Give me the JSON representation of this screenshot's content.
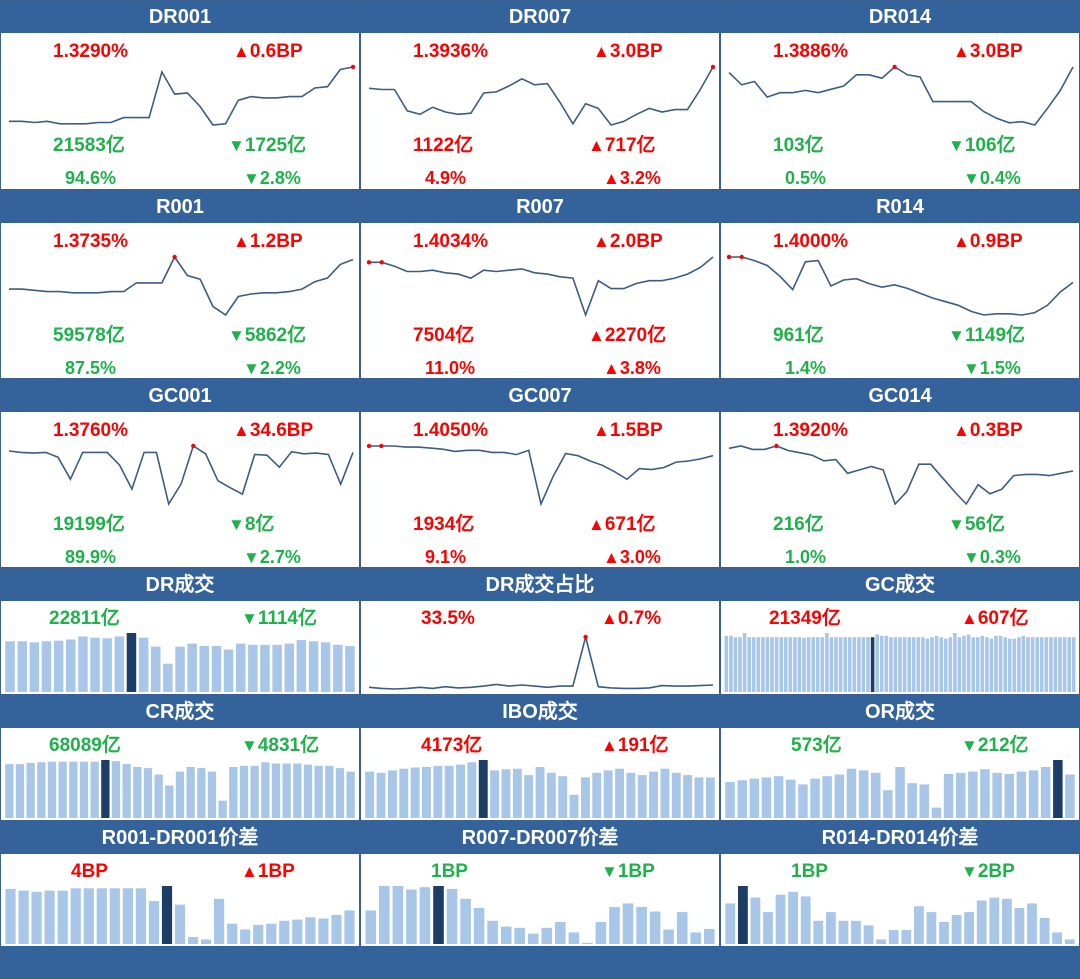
{
  "colors": {
    "header_bg": "#34629a",
    "up": "#ff0000",
    "down": "#1fb14a",
    "line": "#3a5c86",
    "bar": "#a8c6e8",
    "bar_highlight": "#1c3d66"
  },
  "rate_panels": [
    {
      "title": "DR001",
      "rate": "1.3290%",
      "rate_dir": "up",
      "bp": "0.6BP",
      "bp_dir": "up",
      "vol": "21583亿",
      "vol_dir": "down",
      "vol_chg": "1725亿",
      "vol_chg_dir": "down",
      "share": "94.6%",
      "share_dir": "down",
      "share_chg": "2.8%",
      "share_chg_dir": "down",
      "chart_data": {
        "type": "line",
        "values": [
          1.2,
          1.2,
          1.19,
          1.2,
          1.18,
          1.18,
          1.18,
          1.19,
          1.19,
          1.23,
          1.23,
          1.23,
          1.6,
          1.42,
          1.43,
          1.32,
          1.17,
          1.18,
          1.37,
          1.4,
          1.39,
          1.39,
          1.4,
          1.4,
          1.47,
          1.48,
          1.62,
          1.64
        ],
        "highlight_index": 27
      }
    },
    {
      "title": "DR007",
      "rate": "1.3936%",
      "rate_dir": "up",
      "bp": "3.0BP",
      "bp_dir": "up",
      "vol": "1122亿",
      "vol_dir": "up",
      "vol_chg": "717亿",
      "vol_chg_dir": "up",
      "share": "4.9%",
      "share_dir": "up",
      "share_chg": "3.2%",
      "share_chg_dir": "up",
      "chart_data": {
        "type": "line",
        "values": [
          1.55,
          1.54,
          1.54,
          1.36,
          1.33,
          1.39,
          1.35,
          1.33,
          1.34,
          1.51,
          1.52,
          1.57,
          1.63,
          1.58,
          1.59,
          1.43,
          1.25,
          1.42,
          1.38,
          1.24,
          1.27,
          1.33,
          1.38,
          1.35,
          1.37,
          1.37,
          1.54,
          1.73
        ],
        "highlight_index": 27
      }
    },
    {
      "title": "DR014",
      "rate": "1.3886%",
      "rate_dir": "up",
      "bp": "3.0BP",
      "bp_dir": "up",
      "vol": "103亿",
      "vol_dir": "down",
      "vol_chg": "106亿",
      "vol_chg_dir": "down",
      "share": "0.5%",
      "share_dir": "down",
      "share_chg": "0.4%",
      "share_chg_dir": "down",
      "chart_data": {
        "type": "line",
        "values": [
          1.68,
          1.57,
          1.6,
          1.46,
          1.5,
          1.5,
          1.52,
          1.5,
          1.53,
          1.56,
          1.66,
          1.66,
          1.63,
          1.73,
          1.66,
          1.64,
          1.42,
          1.42,
          1.42,
          1.42,
          1.33,
          1.27,
          1.23,
          1.24,
          1.21,
          1.36,
          1.52,
          1.73
        ],
        "highlight_index": 13
      }
    },
    {
      "title": "R001",
      "rate": "1.3735%",
      "rate_dir": "up",
      "bp": "1.2BP",
      "bp_dir": "up",
      "vol": "59578亿",
      "vol_dir": "down",
      "vol_chg": "5862亿",
      "vol_chg_dir": "down",
      "share": "87.5%",
      "share_dir": "down",
      "share_chg": "2.2%",
      "share_chg_dir": "down",
      "chart_data": {
        "type": "line",
        "values": [
          1.4,
          1.4,
          1.39,
          1.38,
          1.38,
          1.37,
          1.37,
          1.37,
          1.38,
          1.38,
          1.45,
          1.45,
          1.45,
          1.66,
          1.51,
          1.48,
          1.26,
          1.19,
          1.34,
          1.36,
          1.37,
          1.37,
          1.38,
          1.4,
          1.46,
          1.49,
          1.6,
          1.64
        ],
        "highlight_index": 13
      }
    },
    {
      "title": "R007",
      "rate": "1.4034%",
      "rate_dir": "up",
      "bp": "2.0BP",
      "bp_dir": "up",
      "vol": "7504亿",
      "vol_dir": "up",
      "vol_chg": "2270亿",
      "vol_chg_dir": "up",
      "share": "11.0%",
      "share_dir": "up",
      "share_chg": "3.8%",
      "share_chg_dir": "up",
      "chart_data": {
        "type": "line",
        "values": [
          1.7,
          1.7,
          1.67,
          1.63,
          1.63,
          1.64,
          1.62,
          1.61,
          1.58,
          1.64,
          1.63,
          1.64,
          1.65,
          1.62,
          1.61,
          1.59,
          1.58,
          1.3,
          1.56,
          1.5,
          1.5,
          1.54,
          1.56,
          1.56,
          1.58,
          1.61,
          1.66,
          1.74
        ],
        "highlight_index": 1
      }
    },
    {
      "title": "R014",
      "rate": "1.4000%",
      "rate_dir": "up",
      "bp": "0.9BP",
      "bp_dir": "up",
      "vol": "961亿",
      "vol_dir": "down",
      "vol_chg": "1149亿",
      "vol_chg_dir": "down",
      "share": "1.4%",
      "share_dir": "down",
      "share_chg": "1.5%",
      "share_chg_dir": "down",
      "chart_data": {
        "type": "line",
        "values": [
          1.74,
          1.74,
          1.71,
          1.67,
          1.58,
          1.47,
          1.7,
          1.71,
          1.5,
          1.55,
          1.56,
          1.52,
          1.49,
          1.51,
          1.48,
          1.44,
          1.4,
          1.37,
          1.34,
          1.29,
          1.26,
          1.27,
          1.27,
          1.26,
          1.28,
          1.34,
          1.45,
          1.53
        ],
        "highlight_index": 1
      }
    },
    {
      "title": "GC001",
      "rate": "1.3760%",
      "rate_dir": "up",
      "bp": "34.6BP",
      "bp_dir": "up",
      "vol": "19199亿",
      "vol_dir": "down",
      "vol_chg": "8亿",
      "vol_chg_dir": "down",
      "share": "89.9%",
      "share_dir": "down",
      "share_chg": "2.7%",
      "share_chg_dir": "down",
      "chart_data": {
        "type": "line",
        "values": [
          1.78,
          1.76,
          1.75,
          1.76,
          1.69,
          1.38,
          1.76,
          1.76,
          1.76,
          1.58,
          1.24,
          1.76,
          1.76,
          1.03,
          1.31,
          1.85,
          1.74,
          1.36,
          1.26,
          1.17,
          1.73,
          1.72,
          1.55,
          1.77,
          1.74,
          1.75,
          1.73,
          1.31,
          1.76
        ],
        "highlight_index": 15
      }
    },
    {
      "title": "GC007",
      "rate": "1.4050%",
      "rate_dir": "up",
      "bp": "1.5BP",
      "bp_dir": "up",
      "vol": "1934亿",
      "vol_dir": "up",
      "vol_chg": "671亿",
      "vol_chg_dir": "up",
      "share": "9.1%",
      "share_dir": "up",
      "share_chg": "3.0%",
      "share_chg_dir": "up",
      "chart_data": {
        "type": "line",
        "values": [
          1.76,
          1.76,
          1.76,
          1.75,
          1.75,
          1.74,
          1.73,
          1.71,
          1.72,
          1.72,
          1.7,
          1.7,
          1.68,
          1.72,
          1.22,
          1.48,
          1.69,
          1.67,
          1.62,
          1.58,
          1.52,
          1.45,
          1.55,
          1.54,
          1.56,
          1.61,
          1.62,
          1.64,
          1.67
        ],
        "highlight_index": 1
      }
    },
    {
      "title": "GC014",
      "rate": "1.3920%",
      "rate_dir": "up",
      "bp": "0.3BP",
      "bp_dir": "up",
      "vol": "216亿",
      "vol_dir": "down",
      "vol_chg": "56亿",
      "vol_chg_dir": "down",
      "share": "1.0%",
      "share_dir": "down",
      "share_chg": "0.3%",
      "share_chg_dir": "down",
      "chart_data": {
        "type": "line",
        "values": [
          1.74,
          1.76,
          1.73,
          1.73,
          1.76,
          1.72,
          1.7,
          1.68,
          1.63,
          1.64,
          1.52,
          1.55,
          1.58,
          1.55,
          1.25,
          1.36,
          1.6,
          1.6,
          1.48,
          1.36,
          1.25,
          1.42,
          1.34,
          1.38,
          1.5,
          1.51,
          1.51,
          1.5,
          1.52,
          1.54
        ],
        "highlight_index": 4
      }
    }
  ],
  "volume_panels": [
    {
      "title": "DR成交",
      "kind": "bar",
      "val": "22811亿",
      "val_dir": "down",
      "chg": "1114亿",
      "chg_dir": "down",
      "chart_data": {
        "type": "bar",
        "values": [
          0.86,
          0.86,
          0.84,
          0.86,
          0.87,
          0.89,
          0.94,
          0.92,
          0.91,
          0.94,
          1.0,
          0.92,
          0.77,
          0.48,
          0.77,
          0.82,
          0.78,
          0.78,
          0.72,
          0.82,
          0.8,
          0.8,
          0.8,
          0.82,
          0.88,
          0.86,
          0.84,
          0.8,
          0.78
        ],
        "highlight_index": 10
      }
    },
    {
      "title": "DR成交占比",
      "kind": "line",
      "val": "33.5%",
      "val_dir": "up",
      "chg": "0.7%",
      "chg_dir": "up",
      "chart_data": {
        "type": "line",
        "values": [
          0.08,
          0.06,
          0.05,
          0.06,
          0.08,
          0.06,
          0.09,
          0.07,
          0.08,
          0.1,
          0.13,
          0.1,
          0.12,
          0.1,
          0.08,
          0.1,
          0.1,
          0.96,
          0.09,
          0.07,
          0.06,
          0.06,
          0.07,
          0.11,
          0.1,
          0.1,
          0.11,
          0.12
        ],
        "highlight_index": 17
      }
    },
    {
      "title": "GC成交",
      "kind": "bar",
      "val": "21349亿",
      "val_dir": "up",
      "chg": "607亿",
      "chg_dir": "up",
      "chart_data": {
        "type": "bar",
        "values": [
          0.8,
          0.8,
          0.78,
          0.78,
          0.84,
          0.78,
          0.78,
          0.78,
          0.78,
          0.78,
          0.78,
          0.78,
          0.78,
          0.78,
          0.78,
          0.78,
          0.78,
          0.77,
          0.78,
          0.78,
          0.78,
          0.78,
          0.84,
          0.78,
          0.78,
          0.78,
          0.78,
          0.78,
          0.78,
          0.78,
          0.78,
          0.78,
          0.78,
          0.82,
          0.8,
          0.8,
          0.78,
          0.78,
          0.78,
          0.78,
          0.78,
          0.78,
          0.78,
          0.78,
          0.76,
          0.78,
          0.8,
          0.78,
          0.76,
          0.78,
          0.84,
          0.78,
          0.8,
          0.82,
          0.78,
          0.78,
          0.8,
          0.78,
          0.76,
          0.8,
          0.8,
          0.78,
          0.76,
          0.76,
          0.78,
          0.8,
          0.78,
          0.78,
          0.78,
          0.78,
          0.78,
          0.78,
          0.78,
          0.78,
          0.78,
          0.78,
          0.78
        ],
        "highlight_index": 32
      }
    },
    {
      "title": "CR成交",
      "kind": "bar",
      "val": "68089亿",
      "val_dir": "down",
      "chg": "4831亿",
      "chg_dir": "down",
      "chart_data": {
        "type": "bar",
        "values": [
          0.93,
          0.93,
          0.95,
          0.96,
          0.97,
          0.97,
          0.97,
          0.97,
          0.97,
          1.0,
          0.98,
          0.93,
          0.88,
          0.86,
          0.75,
          0.56,
          0.8,
          0.88,
          0.86,
          0.8,
          0.3,
          0.88,
          0.9,
          0.9,
          0.96,
          0.94,
          0.94,
          0.94,
          0.92,
          0.9,
          0.9,
          0.86,
          0.8
        ],
        "highlight_index": 9
      }
    },
    {
      "title": "IBO成交",
      "kind": "bar",
      "val": "4173亿",
      "val_dir": "up",
      "chg": "191亿",
      "chg_dir": "up",
      "chart_data": {
        "type": "bar",
        "values": [
          0.8,
          0.78,
          0.82,
          0.85,
          0.87,
          0.88,
          0.9,
          0.9,
          0.92,
          0.96,
          1.0,
          0.82,
          0.84,
          0.85,
          0.74,
          0.88,
          0.78,
          0.72,
          0.4,
          0.7,
          0.78,
          0.82,
          0.85,
          0.78,
          0.74,
          0.8,
          0.85,
          0.78,
          0.74,
          0.7,
          0.7
        ],
        "highlight_index": 10
      }
    },
    {
      "title": "OR成交",
      "kind": "bar",
      "val": "573亿",
      "val_dir": "down",
      "chg": "212亿",
      "chg_dir": "down",
      "chart_data": {
        "type": "bar",
        "values": [
          0.62,
          0.65,
          0.68,
          0.7,
          0.72,
          0.66,
          0.58,
          0.68,
          0.72,
          0.75,
          0.85,
          0.82,
          0.78,
          0.48,
          0.88,
          0.6,
          0.58,
          0.18,
          0.76,
          0.78,
          0.8,
          0.84,
          0.78,
          0.76,
          0.8,
          0.82,
          0.88,
          1.0,
          0.75
        ],
        "highlight_index": 27
      }
    },
    {
      "title": "R001-DR001价差",
      "kind": "bar",
      "val": "4BP",
      "val_dir": "up",
      "chg": "1BP",
      "chg_dir": "up",
      "chart_data": {
        "type": "bar",
        "values": [
          0.95,
          0.92,
          0.9,
          0.92,
          0.92,
          0.96,
          0.96,
          0.96,
          0.96,
          0.96,
          0.96,
          0.74,
          1.0,
          0.68,
          0.12,
          0.08,
          0.78,
          0.35,
          0.25,
          0.33,
          0.35,
          0.4,
          0.42,
          0.46,
          0.44,
          0.5,
          0.58
        ],
        "highlight_index": 12
      }
    },
    {
      "title": "R007-DR007价差",
      "kind": "bar",
      "val": "1BP",
      "val_dir": "down",
      "chg": "1BP",
      "chg_dir": "down",
      "chart_data": {
        "type": "bar",
        "values": [
          0.58,
          1.0,
          1.0,
          0.94,
          0.98,
          1.0,
          0.95,
          0.78,
          0.62,
          0.4,
          0.3,
          0.28,
          0.18,
          0.28,
          0.38,
          0.2,
          0.02,
          0.38,
          0.64,
          0.7,
          0.64,
          0.56,
          0.25,
          0.55,
          0.2,
          0.26
        ],
        "highlight_index": 5
      }
    },
    {
      "title": "R014-DR014价差",
      "kind": "bar",
      "val": "1BP",
      "val_dir": "down",
      "chg": "2BP",
      "chg_dir": "down",
      "chart_data": {
        "type": "bar",
        "values": [
          0.7,
          1.0,
          0.8,
          0.55,
          0.85,
          0.9,
          0.82,
          0.4,
          0.55,
          0.4,
          0.4,
          0.32,
          0.08,
          0.24,
          0.24,
          0.65,
          0.55,
          0.38,
          0.5,
          0.55,
          0.75,
          0.8,
          0.78,
          0.62,
          0.7,
          0.45,
          0.2,
          0.08
        ],
        "highlight_index": 1
      }
    }
  ]
}
